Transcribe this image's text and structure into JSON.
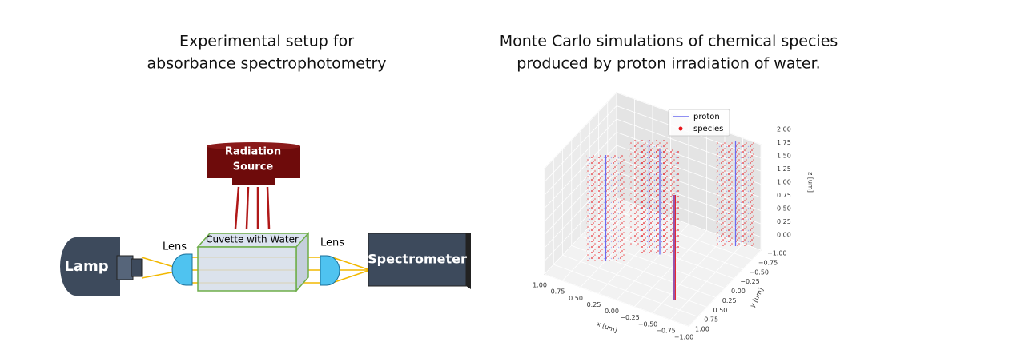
{
  "left": {
    "title": [
      "Experimental setup for",
      "absorbance spectrophotometry"
    ],
    "labels": {
      "radiation_source": [
        "Radiation",
        "Source"
      ],
      "lamp": "Lamp",
      "lens_left": "Lens",
      "cuvette": "Cuvette with Water",
      "lens_right": "Lens",
      "spectrometer": "Spectrometer"
    }
  },
  "chart_data": {
    "type": "scatter3d",
    "title": [
      "Monte Carlo simulations of chemical species",
      "produced by proton irradiation of water."
    ],
    "xlabel": "x [um]",
    "ylabel": "y [um]",
    "zlabel": "z [um]",
    "xlim": [
      -1,
      1
    ],
    "ylim": [
      -1,
      1
    ],
    "zlim": [
      0,
      2
    ],
    "xticks": [
      {
        "value": 1,
        "label": "1.00"
      },
      {
        "value": 0.75,
        "label": "0.75"
      },
      {
        "value": 0.5,
        "label": "0.50"
      },
      {
        "value": 0.25,
        "label": "0.25"
      },
      {
        "value": 0,
        "label": "0.00"
      },
      {
        "value": -0.25,
        "label": "−0.25"
      },
      {
        "value": -0.5,
        "label": "−0.50"
      },
      {
        "value": -0.75,
        "label": "−0.75"
      },
      {
        "value": -1,
        "label": "−1.00"
      }
    ],
    "yticks": [
      {
        "value": -1,
        "label": "−1.00"
      },
      {
        "value": -0.75,
        "label": "−0.75"
      },
      {
        "value": -0.5,
        "label": "−0.50"
      },
      {
        "value": -0.25,
        "label": "−0.25"
      },
      {
        "value": 0,
        "label": "0.00"
      },
      {
        "value": 0.25,
        "label": "0.25"
      },
      {
        "value": 0.5,
        "label": "0.50"
      },
      {
        "value": 0.75,
        "label": "0.75"
      },
      {
        "value": 1,
        "label": "1.00"
      }
    ],
    "zticks": [
      {
        "value": 0,
        "label": "0.00"
      },
      {
        "value": 0.25,
        "label": "0.25"
      },
      {
        "value": 0.5,
        "label": "0.50"
      },
      {
        "value": 0.75,
        "label": "0.75"
      },
      {
        "value": 1,
        "label": "1.00"
      },
      {
        "value": 1.25,
        "label": "1.25"
      },
      {
        "value": 1.5,
        "label": "1.50"
      },
      {
        "value": 1.75,
        "label": "1.75"
      },
      {
        "value": 2,
        "label": "2.00"
      }
    ],
    "series": [
      {
        "name": "proton",
        "color": "#6b6bf0",
        "x": [
          0.5,
          0.2,
          0,
          -0.6,
          -0.7
        ],
        "y": [
          0.3,
          -0.3,
          -0.2,
          0.6,
          -0.9
        ]
      },
      {
        "name": "species",
        "color": "#e8141a"
      }
    ]
  }
}
